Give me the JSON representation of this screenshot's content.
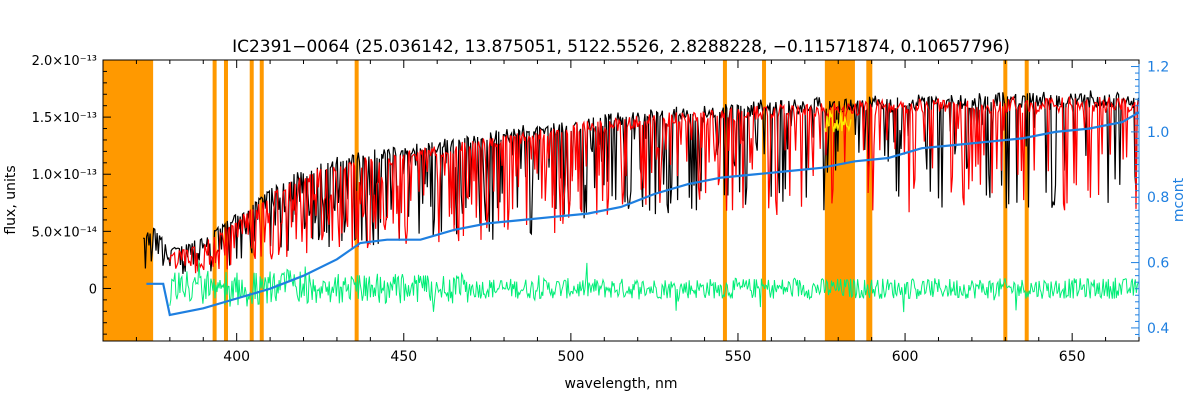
{
  "chart_data": {
    "type": "line",
    "title": "IC2391−0064    (25.036142, 13.875051, 5122.5526, 2.8288228, −0.11571874, 0.10657796)",
    "xlabel": "wavelength, nm",
    "ylabel": "flux, units",
    "y2label": "mcont",
    "xlim": [
      360,
      670
    ],
    "ylim": [
      -4.6e-14,
      2e-13
    ],
    "y2lim": [
      0.36,
      1.22
    ],
    "x_ticks": [
      {
        "value": 400,
        "label": "400"
      },
      {
        "value": 450,
        "label": "450"
      },
      {
        "value": 500,
        "label": "500"
      },
      {
        "value": 550,
        "label": "550"
      },
      {
        "value": 600,
        "label": "600"
      },
      {
        "value": 650,
        "label": "650"
      }
    ],
    "y_ticks": [
      {
        "value": 0,
        "label": "0"
      },
      {
        "value": 5e-14,
        "label": "5.0×10⁻¹⁴"
      },
      {
        "value": 1e-13,
        "label": "1.0×10⁻¹³"
      },
      {
        "value": 1.5e-13,
        "label": "1.5×10⁻¹³"
      },
      {
        "value": 2e-13,
        "label": "2.0×10⁻¹³"
      }
    ],
    "y2_ticks": [
      {
        "value": 0.4,
        "label": "0.4"
      },
      {
        "value": 0.6,
        "label": "0.6"
      },
      {
        "value": 0.8,
        "label": "0.8"
      },
      {
        "value": 1.0,
        "label": "1.0"
      },
      {
        "value": 1.2,
        "label": "1.2"
      }
    ],
    "masked_regions": [
      [
        360,
        375
      ],
      [
        576,
        585
      ]
    ],
    "masked_lines": [
      393.4,
      396.8,
      404.5,
      407.5,
      435.9,
      546.1,
      557.8,
      589.0,
      589.6,
      630.0,
      636.4
    ],
    "yellow_regions": [
      [
        576,
        584
      ]
    ],
    "series": [
      {
        "role": "observed",
        "color": "#000000",
        "x": [
          372,
          375,
          380,
          390,
          400,
          410,
          420,
          430,
          440,
          450,
          460,
          470,
          480,
          490,
          500,
          510,
          520,
          530,
          540,
          550,
          560,
          570,
          580,
          590,
          600,
          610,
          620,
          630,
          640,
          650,
          660,
          670
        ],
        "y": [
          4.5e-14,
          5.5e-14,
          3.5e-14,
          4.5e-14,
          6.5e-14,
          9e-14,
          1.05e-13,
          1.15e-13,
          1.2e-13,
          1.25e-13,
          1.3e-13,
          1.35e-13,
          1.4e-13,
          1.45e-13,
          1.48e-13,
          1.52e-13,
          1.55e-13,
          1.58e-13,
          1.6e-13,
          1.63e-13,
          1.65e-13,
          1.66e-13,
          1.67e-13,
          1.68e-13,
          1.69e-13,
          1.7e-13,
          1.7e-13,
          1.71e-13,
          1.71e-13,
          1.72e-13,
          1.72e-13,
          1.72e-13
        ]
      },
      {
        "role": "model",
        "color": "#ff0000",
        "x": [
          380,
          390,
          400,
          410,
          420,
          430,
          440,
          450,
          460,
          470,
          480,
          490,
          500,
          510,
          520,
          530,
          540,
          550,
          560,
          570,
          580,
          590,
          600,
          610,
          620,
          630,
          640,
          650,
          660,
          670
        ],
        "y": [
          3e-14,
          4e-14,
          6e-14,
          8.5e-14,
          1e-13,
          1.1e-13,
          1.15e-13,
          1.2e-13,
          1.25e-13,
          1.3e-13,
          1.35e-13,
          1.4e-13,
          1.44e-13,
          1.48e-13,
          1.51e-13,
          1.54e-13,
          1.56e-13,
          1.59e-13,
          1.61e-13,
          1.62e-13,
          1.63e-13,
          1.64e-13,
          1.65e-13,
          1.66e-13,
          1.66e-13,
          1.67e-13,
          1.67e-13,
          1.68e-13,
          1.68e-13,
          1.68e-13
        ]
      },
      {
        "role": "residual",
        "color": "#00ee77",
        "x": [
          380,
          400,
          420,
          440,
          460,
          480,
          500,
          520,
          540,
          560,
          580,
          600,
          620,
          640,
          660,
          670
        ],
        "y": [
          0,
          0,
          0,
          0,
          0,
          0,
          0,
          0,
          0,
          0,
          0,
          0,
          0,
          0,
          0,
          0
        ]
      },
      {
        "role": "continuum",
        "axis": "right",
        "color": "#1e7fe0",
        "x": [
          373,
          378,
          380,
          390,
          400,
          410,
          420,
          430,
          437,
          445,
          455,
          465,
          475,
          485,
          495,
          505,
          515,
          525,
          535,
          545,
          555,
          565,
          575,
          585,
          595,
          605,
          615,
          625,
          635,
          645,
          655,
          665,
          670
        ],
        "y": [
          0.535,
          0.535,
          0.44,
          0.46,
          0.49,
          0.52,
          0.56,
          0.61,
          0.66,
          0.67,
          0.67,
          0.7,
          0.72,
          0.73,
          0.74,
          0.75,
          0.77,
          0.81,
          0.84,
          0.86,
          0.87,
          0.88,
          0.89,
          0.91,
          0.92,
          0.95,
          0.96,
          0.97,
          0.98,
          1.0,
          1.01,
          1.03,
          1.06
        ]
      }
    ]
  }
}
